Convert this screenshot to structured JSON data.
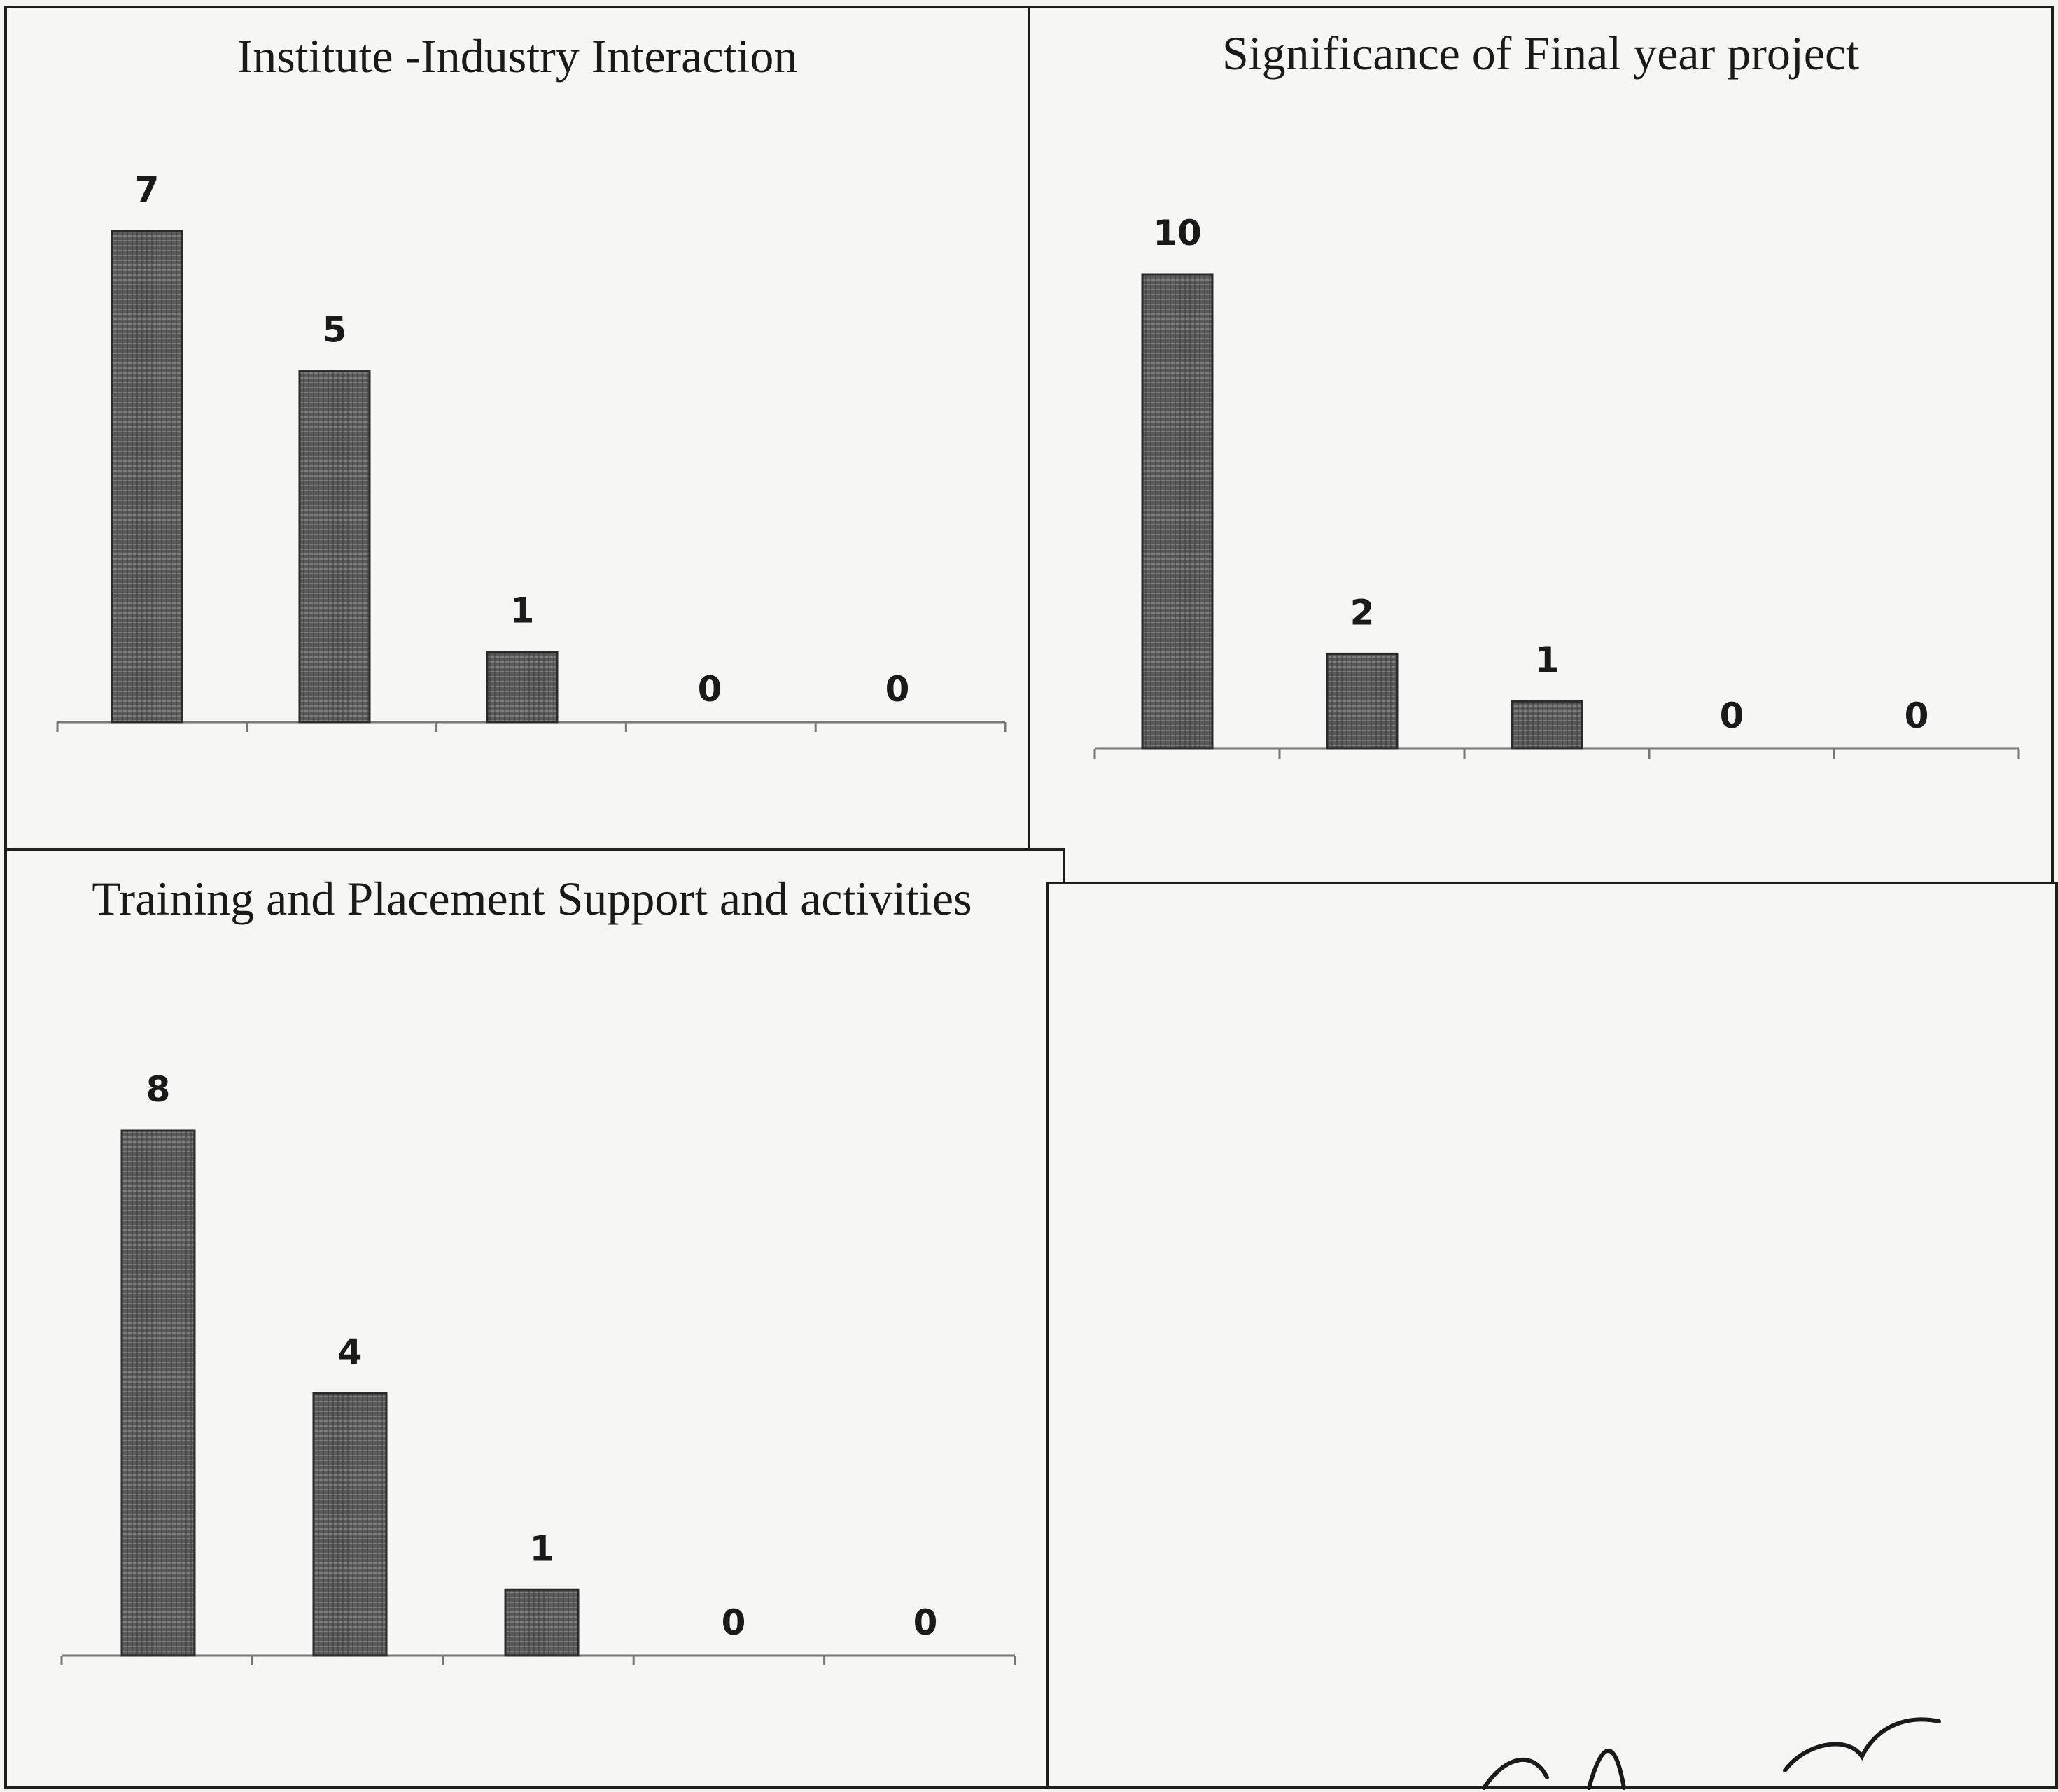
{
  "chart_data": [
    {
      "type": "bar",
      "title": "Institute -Industry Interaction",
      "categories": [
        "",
        "",
        "",
        "",
        ""
      ],
      "values": [
        7,
        5,
        1,
        0,
        0
      ],
      "data_labels": [
        "7",
        "5",
        "1",
        "0",
        "0"
      ],
      "ylim": [
        0,
        7
      ],
      "grid": false,
      "legend": "none",
      "bar_color": "#5a5a5a"
    },
    {
      "type": "bar",
      "title": "Significance of Final year project",
      "categories": [
        "",
        "",
        "",
        "",
        ""
      ],
      "values": [
        10,
        2,
        1,
        0,
        0
      ],
      "data_labels": [
        "10",
        "2",
        "1",
        "0",
        "0"
      ],
      "ylim": [
        0,
        10
      ],
      "grid": false,
      "legend": "none",
      "bar_color": "#5a5a5a"
    },
    {
      "type": "bar",
      "title": "Training and Placement Support and activities",
      "categories": [
        "",
        "",
        "",
        "",
        ""
      ],
      "values": [
        8,
        4,
        1,
        0,
        0
      ],
      "data_labels": [
        "8",
        "4",
        "1",
        "0",
        "0"
      ],
      "ylim": [
        0,
        8
      ],
      "grid": false,
      "legend": "none",
      "bar_color": "#5a5a5a"
    }
  ]
}
